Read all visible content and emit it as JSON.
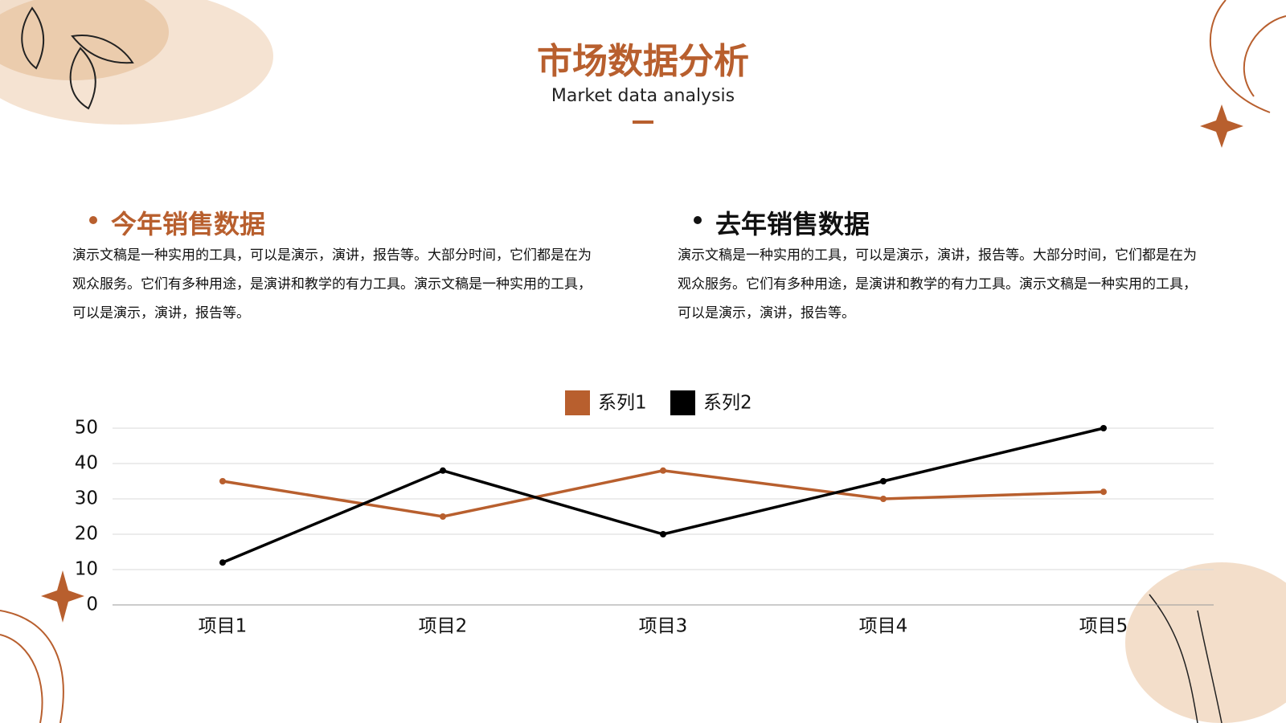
{
  "header": {
    "title": "市场数据分析",
    "subtitle": "Market data analysis"
  },
  "sections": [
    {
      "heading": "今年销售数据",
      "text": "演示文稿是一种实用的工具，可以是演示，演讲，报告等。大部分时间，它们都是在为观众服务。它们有多种用途，是演讲和教学的有力工具。演示文稿是一种实用的工具，可以是演示，演讲，报告等。"
    },
    {
      "heading": "去年销售数据",
      "text": "演示文稿是一种实用的工具，可以是演示，演讲，报告等。大部分时间，它们都是在为观众服务。它们有多种用途，是演讲和教学的有力工具。演示文稿是一种实用的工具，可以是演示，演讲，报告等。"
    }
  ],
  "chart_data": {
    "type": "line",
    "categories": [
      "项目1",
      "项目2",
      "项目3",
      "项目4",
      "项目5"
    ],
    "series": [
      {
        "name": "系列1",
        "color": "#b85f2e",
        "values": [
          35,
          25,
          38,
          30,
          32
        ]
      },
      {
        "name": "系列2",
        "color": "#000000",
        "values": [
          12,
          38,
          20,
          35,
          50
        ]
      }
    ],
    "ylim": [
      0,
      50
    ],
    "yticks": [
      0,
      10,
      20,
      30,
      40,
      50
    ],
    "grid": true,
    "legend": "top"
  }
}
